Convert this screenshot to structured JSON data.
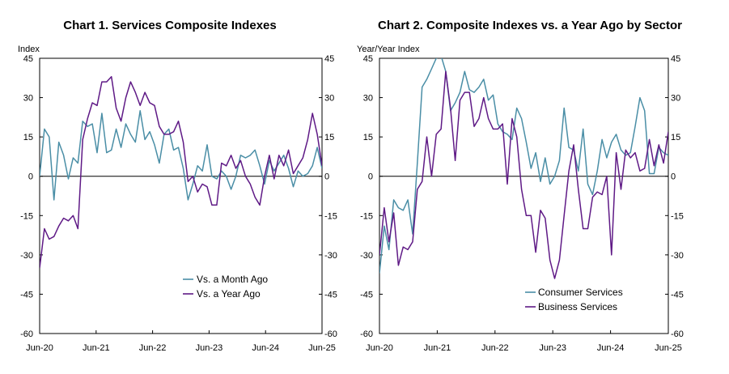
{
  "colors": {
    "teal": "#4a8ea6",
    "purple": "#5f1a86",
    "axis": "#000000"
  },
  "chart_data": [
    {
      "type": "line",
      "title": "Chart 1. Services Composite Indexes",
      "ylabel": "Index",
      "ylim": [
        -60,
        45
      ],
      "yticks": [
        45,
        30,
        15,
        0,
        -15,
        -30,
        -45,
        -60
      ],
      "xticks": [
        "Jun-20",
        "Jun-21",
        "Jun-22",
        "Jun-23",
        "Jun-24",
        "Jun-25"
      ],
      "x_range": [
        0,
        60
      ],
      "legend_position": "lower-right",
      "series": [
        {
          "name": "Vs. a Month Ago",
          "color_key": "teal",
          "values": [
            0,
            18,
            15,
            -9,
            13,
            8,
            -1,
            7,
            5,
            21,
            19,
            20,
            9,
            24,
            9,
            10,
            18,
            11,
            20,
            16,
            13,
            25,
            14,
            17,
            12,
            5,
            16,
            18,
            10,
            11,
            3,
            -9,
            -3,
            4,
            2,
            12,
            0,
            -1,
            2,
            0,
            -5,
            0,
            8,
            7,
            8,
            10,
            4,
            -3,
            6,
            2,
            5,
            8,
            3,
            -4,
            2,
            0,
            1,
            4,
            11,
            3
          ]
        },
        {
          "name": "Vs. a Year Ago",
          "color_key": "purple",
          "values": [
            -35,
            -20,
            -24,
            -23,
            -19,
            -16,
            -17,
            -15,
            -20,
            14,
            22,
            28,
            27,
            36,
            36,
            38,
            26,
            21,
            30,
            36,
            32,
            27,
            32,
            28,
            27,
            19,
            16,
            16,
            17,
            21,
            13,
            -2,
            0,
            -6,
            -3,
            -4,
            -11,
            -11,
            5,
            4,
            8,
            3,
            6,
            0,
            -3,
            -8,
            -11,
            0,
            8,
            -1,
            8,
            4,
            10,
            1,
            4,
            7,
            14,
            24,
            16,
            4
          ]
        }
      ]
    },
    {
      "type": "line",
      "title": "Chart 2. Composite Indexes vs. a Year Ago by Sector",
      "ylabel": "Year/Year Index",
      "ylim": [
        -60,
        45
      ],
      "yticks": [
        45,
        30,
        15,
        0,
        -15,
        -30,
        -45,
        -60
      ],
      "xticks": [
        "Jun-20",
        "Jun-21",
        "Jun-22",
        "Jun-23",
        "Jun-24",
        "Jun-25"
      ],
      "x_range": [
        0,
        60
      ],
      "legend_position": "lower-right",
      "series": [
        {
          "name": "Consumer Services",
          "color_key": "teal",
          "values": [
            -37,
            -19,
            -28,
            -9,
            -12,
            -13,
            -9,
            -22,
            5,
            34,
            37,
            41,
            45,
            46,
            40,
            25,
            28,
            32,
            40,
            33,
            32,
            34,
            37,
            29,
            31,
            20,
            17,
            16,
            14,
            26,
            22,
            13,
            3,
            9,
            -2,
            7,
            -3,
            0,
            6,
            26,
            11,
            10,
            2,
            18,
            -3,
            -7,
            2,
            14,
            7,
            13,
            16,
            10,
            8,
            9,
            19,
            30,
            25,
            1,
            1,
            11,
            9,
            8
          ]
        },
        {
          "name": "Business Services",
          "color_key": "purple",
          "values": [
            -30,
            -12,
            -25,
            -14,
            -34,
            -27,
            -28,
            -25,
            -5,
            -2,
            15,
            0,
            16,
            18,
            40,
            26,
            6,
            29,
            32,
            32,
            19,
            22,
            30,
            22,
            18,
            18,
            20,
            -3,
            22,
            15,
            -5,
            -15,
            -15,
            -29,
            -13,
            -16,
            -32,
            -39,
            -32,
            -15,
            2,
            12,
            -5,
            -20,
            -20,
            -8,
            -6,
            -7,
            0,
            -30,
            9,
            -5,
            10,
            7,
            9,
            2,
            3,
            14,
            4,
            12,
            5,
            17
          ]
        }
      ]
    }
  ]
}
